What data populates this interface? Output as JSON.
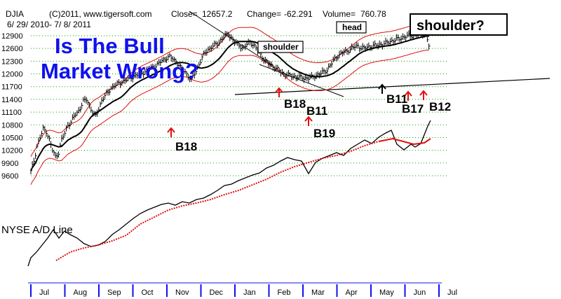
{
  "header": {
    "symbol": "DJIA",
    "copyright": "(C)2011, www.tigersoft.com",
    "close_label": "Close=",
    "close_value": "12657.2",
    "change_label": "Change=",
    "change_value": "-62.291",
    "volume_label": "Volume=",
    "volume_value": "760.78",
    "date_range": "6/ 29/ 2010- 7/ 8/ 2011"
  },
  "headline": {
    "line1": "Is The Bull",
    "line2": "Market Wrong?"
  },
  "pattern_labels": {
    "shoulder_left": "shoulder",
    "head": "head",
    "shoulder_right": "shoulder?"
  },
  "ad_line_label": "NYSE A/D Line",
  "colors": {
    "price": "#000000",
    "ma": "#000000",
    "bands": "#e01010",
    "ad_line": "#000000",
    "ad_ma": "#e01010",
    "headline": "#1010ee",
    "grid": "#00aa00",
    "axis": "#1010ee",
    "arrow_red": "#e01010",
    "arrow_black": "#000000"
  },
  "chart_data": {
    "type": "line",
    "title": "DJIA",
    "y_ticks": [
      9600,
      9900,
      10200,
      10500,
      10800,
      11100,
      11400,
      11700,
      12000,
      12300,
      12600,
      12900
    ],
    "ylim": [
      9600,
      12900
    ],
    "x_months": [
      "Jul",
      "Aug",
      "Sep",
      "Oct",
      "Nov",
      "Dec",
      "Jan",
      "Feb",
      "Mar",
      "Apr",
      "May",
      "Jun",
      "Jul"
    ],
    "grid": true,
    "series": [
      {
        "name": "DJIA",
        "kind": "price",
        "x": [
          0,
          2,
          4,
          6,
          8,
          10,
          12,
          14,
          16,
          18,
          20,
          22,
          24,
          26,
          28,
          30,
          32,
          34,
          36,
          38,
          40,
          42,
          44,
          46,
          48,
          50,
          52
        ],
        "values": [
          9700,
          9950,
          10300,
          10500,
          10700,
          10650,
          10450,
          10200,
          10050,
          10150,
          10450,
          10600,
          10800,
          10860,
          11000,
          11080,
          11200,
          11350,
          11400,
          11250,
          11100,
          11000,
          11180,
          11380,
          11480,
          11560,
          11670
        ]
      },
      {
        "name": "DJIA",
        "kind": "price",
        "x": [
          54,
          56,
          58,
          60,
          62,
          64,
          66,
          68,
          70,
          72,
          74,
          76,
          78,
          80,
          82,
          84,
          86,
          88,
          90,
          92,
          94,
          96,
          98,
          100,
          102,
          104,
          106,
          108,
          110,
          112,
          114,
          116,
          118,
          120,
          122,
          124,
          126,
          128,
          130,
          132,
          134,
          136,
          138,
          140,
          142,
          144,
          146,
          148,
          150,
          152,
          154,
          156,
          158,
          160,
          162,
          164,
          166,
          168,
          170,
          172,
          174,
          176,
          178,
          180,
          182,
          184,
          186,
          188,
          190,
          192,
          194,
          196,
          198,
          200,
          202,
          204,
          206,
          208,
          210,
          212,
          214,
          216,
          218,
          220,
          222,
          224,
          226,
          228,
          230,
          232,
          234,
          236,
          238,
          240,
          242,
          244,
          246,
          248,
          250,
          252,
          254,
          256,
          258
        ],
        "values": [
          11720,
          11760,
          11790,
          11830,
          11860,
          11900,
          11930,
          11960,
          11990,
          12020,
          12060,
          12100,
          12140,
          12180,
          12220,
          12280,
          12330,
          12380,
          12400,
          12350,
          12300,
          12200,
          12100,
          12050,
          11950,
          11850,
          12000,
          12150,
          12300,
          12450,
          12550,
          12600,
          12650,
          12700,
          12750,
          12830,
          12900,
          12950,
          12850,
          12750,
          12700,
          12650,
          12600,
          12700,
          12750,
          12700,
          12600,
          12500,
          12400,
          12300,
          12250,
          12200,
          12150,
          12100,
          12050,
          12000,
          11980,
          11960,
          11950,
          11930,
          11920,
          11910,
          11900,
          11900,
          11920,
          11950,
          11980,
          12010,
          12050,
          12100,
          12200,
          12300,
          12400,
          12450,
          12500,
          12520,
          12560,
          12600,
          12640,
          12657,
          12620,
          12600,
          12630,
          12650,
          12660,
          12670,
          12690,
          12700,
          12720,
          12750,
          12780,
          12800,
          12820,
          12850,
          12870,
          12890,
          12900,
          12910,
          12920,
          12930,
          12940,
          12950,
          12657
        ]
      }
    ],
    "annotations": [
      "B18",
      "B18",
      "B11",
      "B19",
      "B11",
      "B17",
      "B12"
    ]
  }
}
